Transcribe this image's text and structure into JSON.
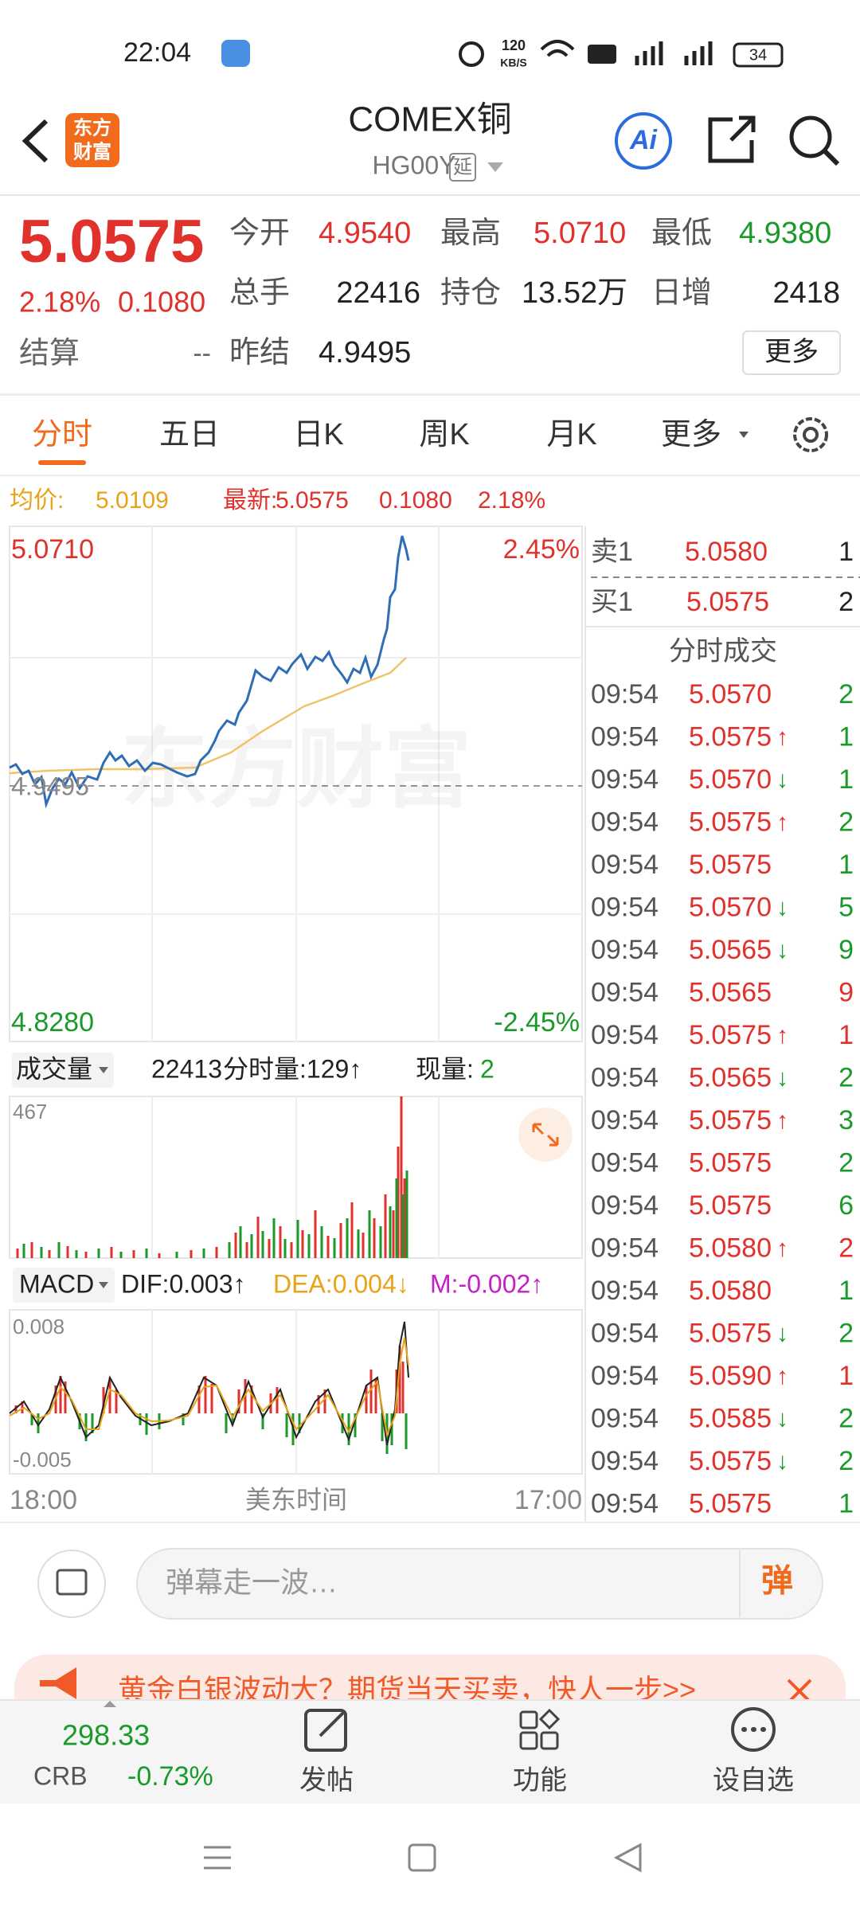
{
  "status_bar": {
    "time": "22:04",
    "speed": "120",
    "speed_unit": "KB/S",
    "battery": "34"
  },
  "header": {
    "logo": [
      "东方",
      "财富"
    ],
    "title": "COMEX铜",
    "code": "HG00Y",
    "delay_tag": "延",
    "ai": "Ai"
  },
  "quote": {
    "price": "5.0575",
    "change_pct": "2.18%",
    "change": "0.1080",
    "settle_label": "结算",
    "settle": "--",
    "fields": [
      {
        "label": "今开",
        "value": "4.9540",
        "color": "#e0312c"
      },
      {
        "label": "最高",
        "value": "5.0710",
        "color": "#e0312c"
      },
      {
        "label": "最低",
        "value": "4.9380",
        "color": "#1a9a2a"
      },
      {
        "label": "总手",
        "value": "22416",
        "color": "#222222"
      },
      {
        "label": "持仓",
        "value": "13.52万",
        "color": "#222222"
      },
      {
        "label": "日增",
        "value": "2418",
        "color": "#222222"
      },
      {
        "label": "昨结",
        "value": "4.9495",
        "color": "#222222"
      }
    ],
    "more_button": "更多"
  },
  "tabs": [
    "分时",
    "五日",
    "日K",
    "周K",
    "月K",
    "更多"
  ],
  "info_line": {
    "avg_label": "均价:",
    "avg": "5.0109",
    "latest_label": "最新:",
    "latest": "5.0575",
    "change": "0.1080",
    "change_pct": "2.18%"
  },
  "price_chart": {
    "high": "5.0710",
    "high_pct": "2.45%",
    "low": "4.8280",
    "low_pct": "-2.45%",
    "prev_close": "4.9495",
    "watermark": "东方财富"
  },
  "volume_panel": {
    "label": "成交量",
    "total": "22413",
    "minute_volume": "分时量:129↑",
    "current_label": "现量:",
    "current": "2",
    "max": "467"
  },
  "macd_panel": {
    "label": "MACD",
    "dif": "DIF:0.003↑",
    "dea": "DEA:0.004↓",
    "m": "M:-0.002↑",
    "max": "0.008",
    "min": "-0.005"
  },
  "time_axis": {
    "start": "18:00",
    "zone": "美东时间",
    "end": "17:00"
  },
  "order_book": {
    "sell": {
      "label": "卖1",
      "price": "5.0580",
      "volume": "1"
    },
    "buy": {
      "label": "买1",
      "price": "5.0575",
      "volume": "2"
    },
    "trades_title": "分时成交",
    "trades": [
      {
        "time": "09:54",
        "price": "5.0570",
        "volume": "2",
        "volume_color": "#1a9a2a"
      },
      {
        "time": "09:54",
        "price": "5.0575",
        "arrow": "↑",
        "volume": "1",
        "volume_color": "#1a9a2a"
      },
      {
        "time": "09:54",
        "price": "5.0570",
        "arrow": "↓",
        "volume": "1",
        "volume_color": "#1a9a2a"
      },
      {
        "time": "09:54",
        "price": "5.0575",
        "arrow": "↑",
        "volume": "2",
        "volume_color": "#1a9a2a"
      },
      {
        "time": "09:54",
        "price": "5.0575",
        "volume": "1",
        "volume_color": "#1a9a2a"
      },
      {
        "time": "09:54",
        "price": "5.0570",
        "arrow": "↓",
        "volume": "5",
        "volume_color": "#1a9a2a"
      },
      {
        "time": "09:54",
        "price": "5.0565",
        "arrow": "↓",
        "volume": "9",
        "volume_color": "#1a9a2a"
      },
      {
        "time": "09:54",
        "price": "5.0565",
        "volume": "9",
        "volume_color": "#e0312c"
      },
      {
        "time": "09:54",
        "price": "5.0575",
        "arrow": "↑",
        "volume": "1",
        "volume_color": "#e0312c"
      },
      {
        "time": "09:54",
        "price": "5.0565",
        "arrow": "↓",
        "volume": "2",
        "volume_color": "#1a9a2a"
      },
      {
        "time": "09:54",
        "price": "5.0575",
        "arrow": "↑",
        "volume": "3",
        "volume_color": "#1a9a2a"
      },
      {
        "time": "09:54",
        "price": "5.0575",
        "volume": "2",
        "volume_color": "#1a9a2a"
      },
      {
        "time": "09:54",
        "price": "5.0575",
        "volume": "6",
        "volume_color": "#1a9a2a"
      },
      {
        "time": "09:54",
        "price": "5.0580",
        "arrow": "↑",
        "volume": "2",
        "volume_color": "#e0312c"
      },
      {
        "time": "09:54",
        "price": "5.0580",
        "volume": "1",
        "volume_color": "#1a9a2a"
      },
      {
        "time": "09:54",
        "price": "5.0575",
        "arrow": "↓",
        "volume": "2",
        "volume_color": "#1a9a2a"
      },
      {
        "time": "09:54",
        "price": "5.0590",
        "arrow": "↑",
        "volume": "1",
        "volume_color": "#e0312c"
      },
      {
        "time": "09:54",
        "price": "5.0585",
        "arrow": "↓",
        "volume": "2",
        "volume_color": "#1a9a2a"
      },
      {
        "time": "09:54",
        "price": "5.0575",
        "arrow": "↓",
        "volume": "2",
        "volume_color": "#1a9a2a"
      },
      {
        "time": "09:54",
        "price": "5.0575",
        "volume": "1",
        "volume_color": "#1a9a2a"
      }
    ]
  },
  "danmaku": {
    "placeholder": "弹幕走一波…",
    "button": "弹"
  },
  "banner": {
    "text": "黄金白银波动大？期货当天买卖，快人一步>>"
  },
  "bottom_nav": {
    "index": {
      "value": "298.33",
      "name": "CRB",
      "change": "-0.73%"
    },
    "items": [
      "发帖",
      "功能",
      "设自选"
    ]
  }
}
